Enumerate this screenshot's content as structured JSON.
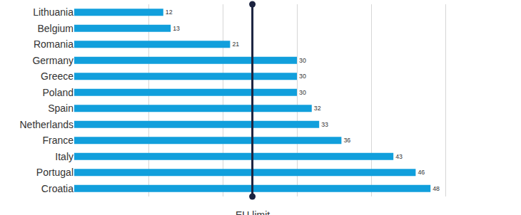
{
  "chart_data": {
    "type": "bar",
    "orientation": "horizontal",
    "categories": [
      "Lithuania",
      "Belgium",
      "Romania",
      "Germany",
      "Greece",
      "Poland",
      "Spain",
      "Netherlands",
      "France",
      "Italy",
      "Portugal",
      "Croatia"
    ],
    "values": [
      12,
      13,
      21,
      30,
      30,
      30,
      32,
      33,
      36,
      43,
      46,
      48
    ],
    "color": "#119fdc",
    "xlim": [
      0,
      60
    ],
    "xticks": [
      0,
      10,
      20,
      30,
      40,
      50,
      60
    ],
    "grid": true,
    "data_labels": true,
    "tick_labels": "y",
    "reference_line": {
      "value": 24,
      "label": "EU limit",
      "color": "#1b2340"
    }
  }
}
